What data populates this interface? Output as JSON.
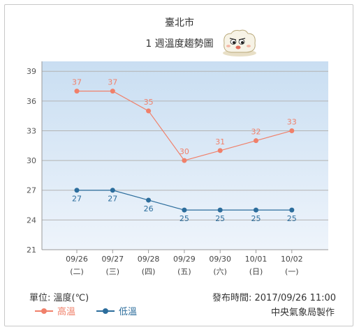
{
  "location": "臺北市",
  "subtitle": "1 週溫度趨勢圖",
  "unit_label": "單位: 溫度(℃)",
  "issued_label": "發布時間: 2017/09/26 11:00",
  "maker_label": "中央氣象局製作",
  "colors": {
    "high": "#f0806a",
    "low": "#2c6d9c",
    "plot_bg_top": "#c9def2",
    "plot_bg_bottom": "#eef4fb"
  },
  "chart_data": {
    "type": "line",
    "categories": [
      "09/26",
      "09/27",
      "09/28",
      "09/29",
      "09/30",
      "10/01",
      "10/02"
    ],
    "weekdays": [
      "(二)",
      "(三)",
      "(四)",
      "(五)",
      "(六)",
      "(日)",
      "(一)"
    ],
    "series": [
      {
        "name": "高溫",
        "values": [
          37,
          37,
          35,
          30,
          31,
          32,
          33
        ]
      },
      {
        "name": "低溫",
        "values": [
          27,
          27,
          26,
          25,
          25,
          25,
          25
        ]
      }
    ],
    "yticks": [
      21,
      24,
      27,
      30,
      33,
      36,
      39
    ],
    "ylim": [
      21,
      40
    ],
    "grid": true,
    "legend": "bottom-left"
  }
}
